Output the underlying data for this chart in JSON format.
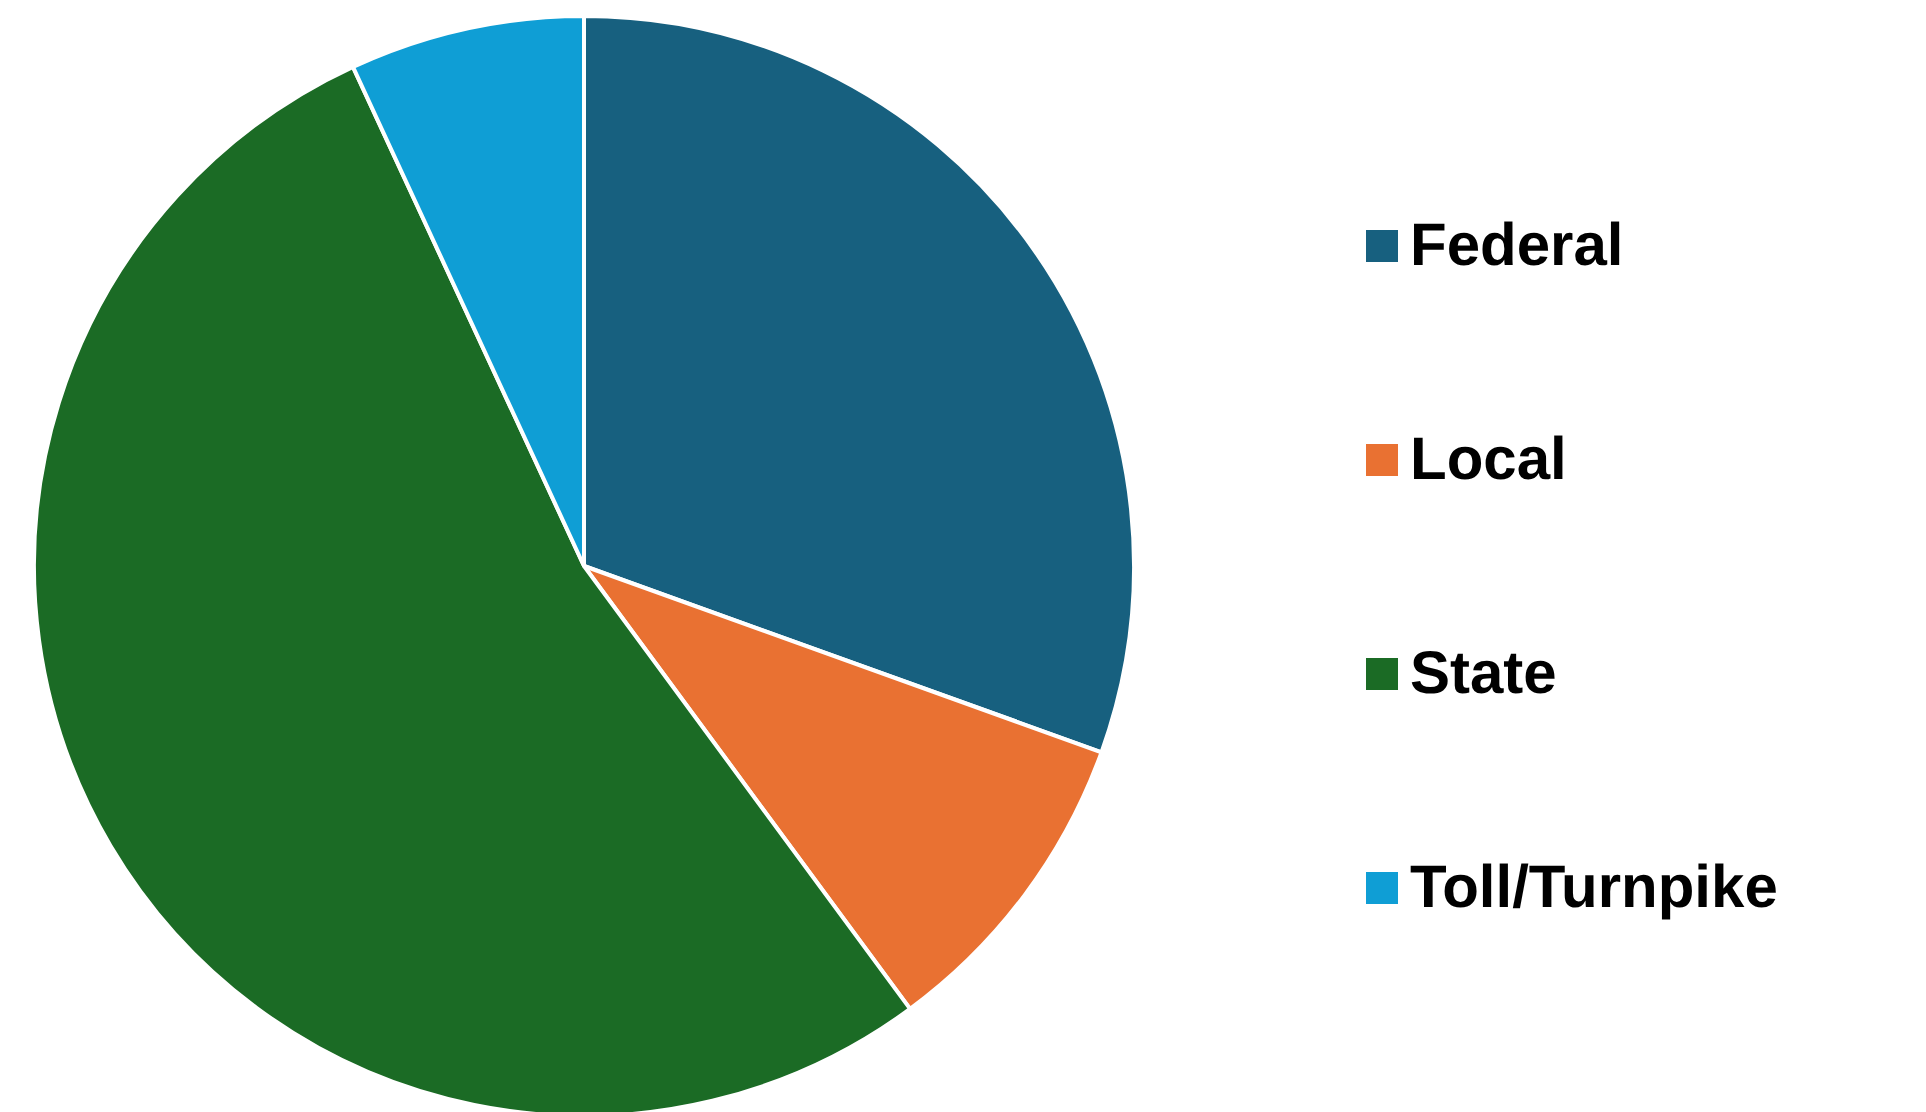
{
  "chart_data": {
    "type": "pie",
    "categories": [
      "Federal",
      "Local",
      "State",
      "Toll/Turnpike"
    ],
    "values": [
      30.5,
      9.4,
      53.2,
      6.9
    ],
    "colors": [
      "#17607f",
      "#e97132",
      "#1b6b25",
      "#0f9ed5"
    ],
    "legend": "right"
  }
}
